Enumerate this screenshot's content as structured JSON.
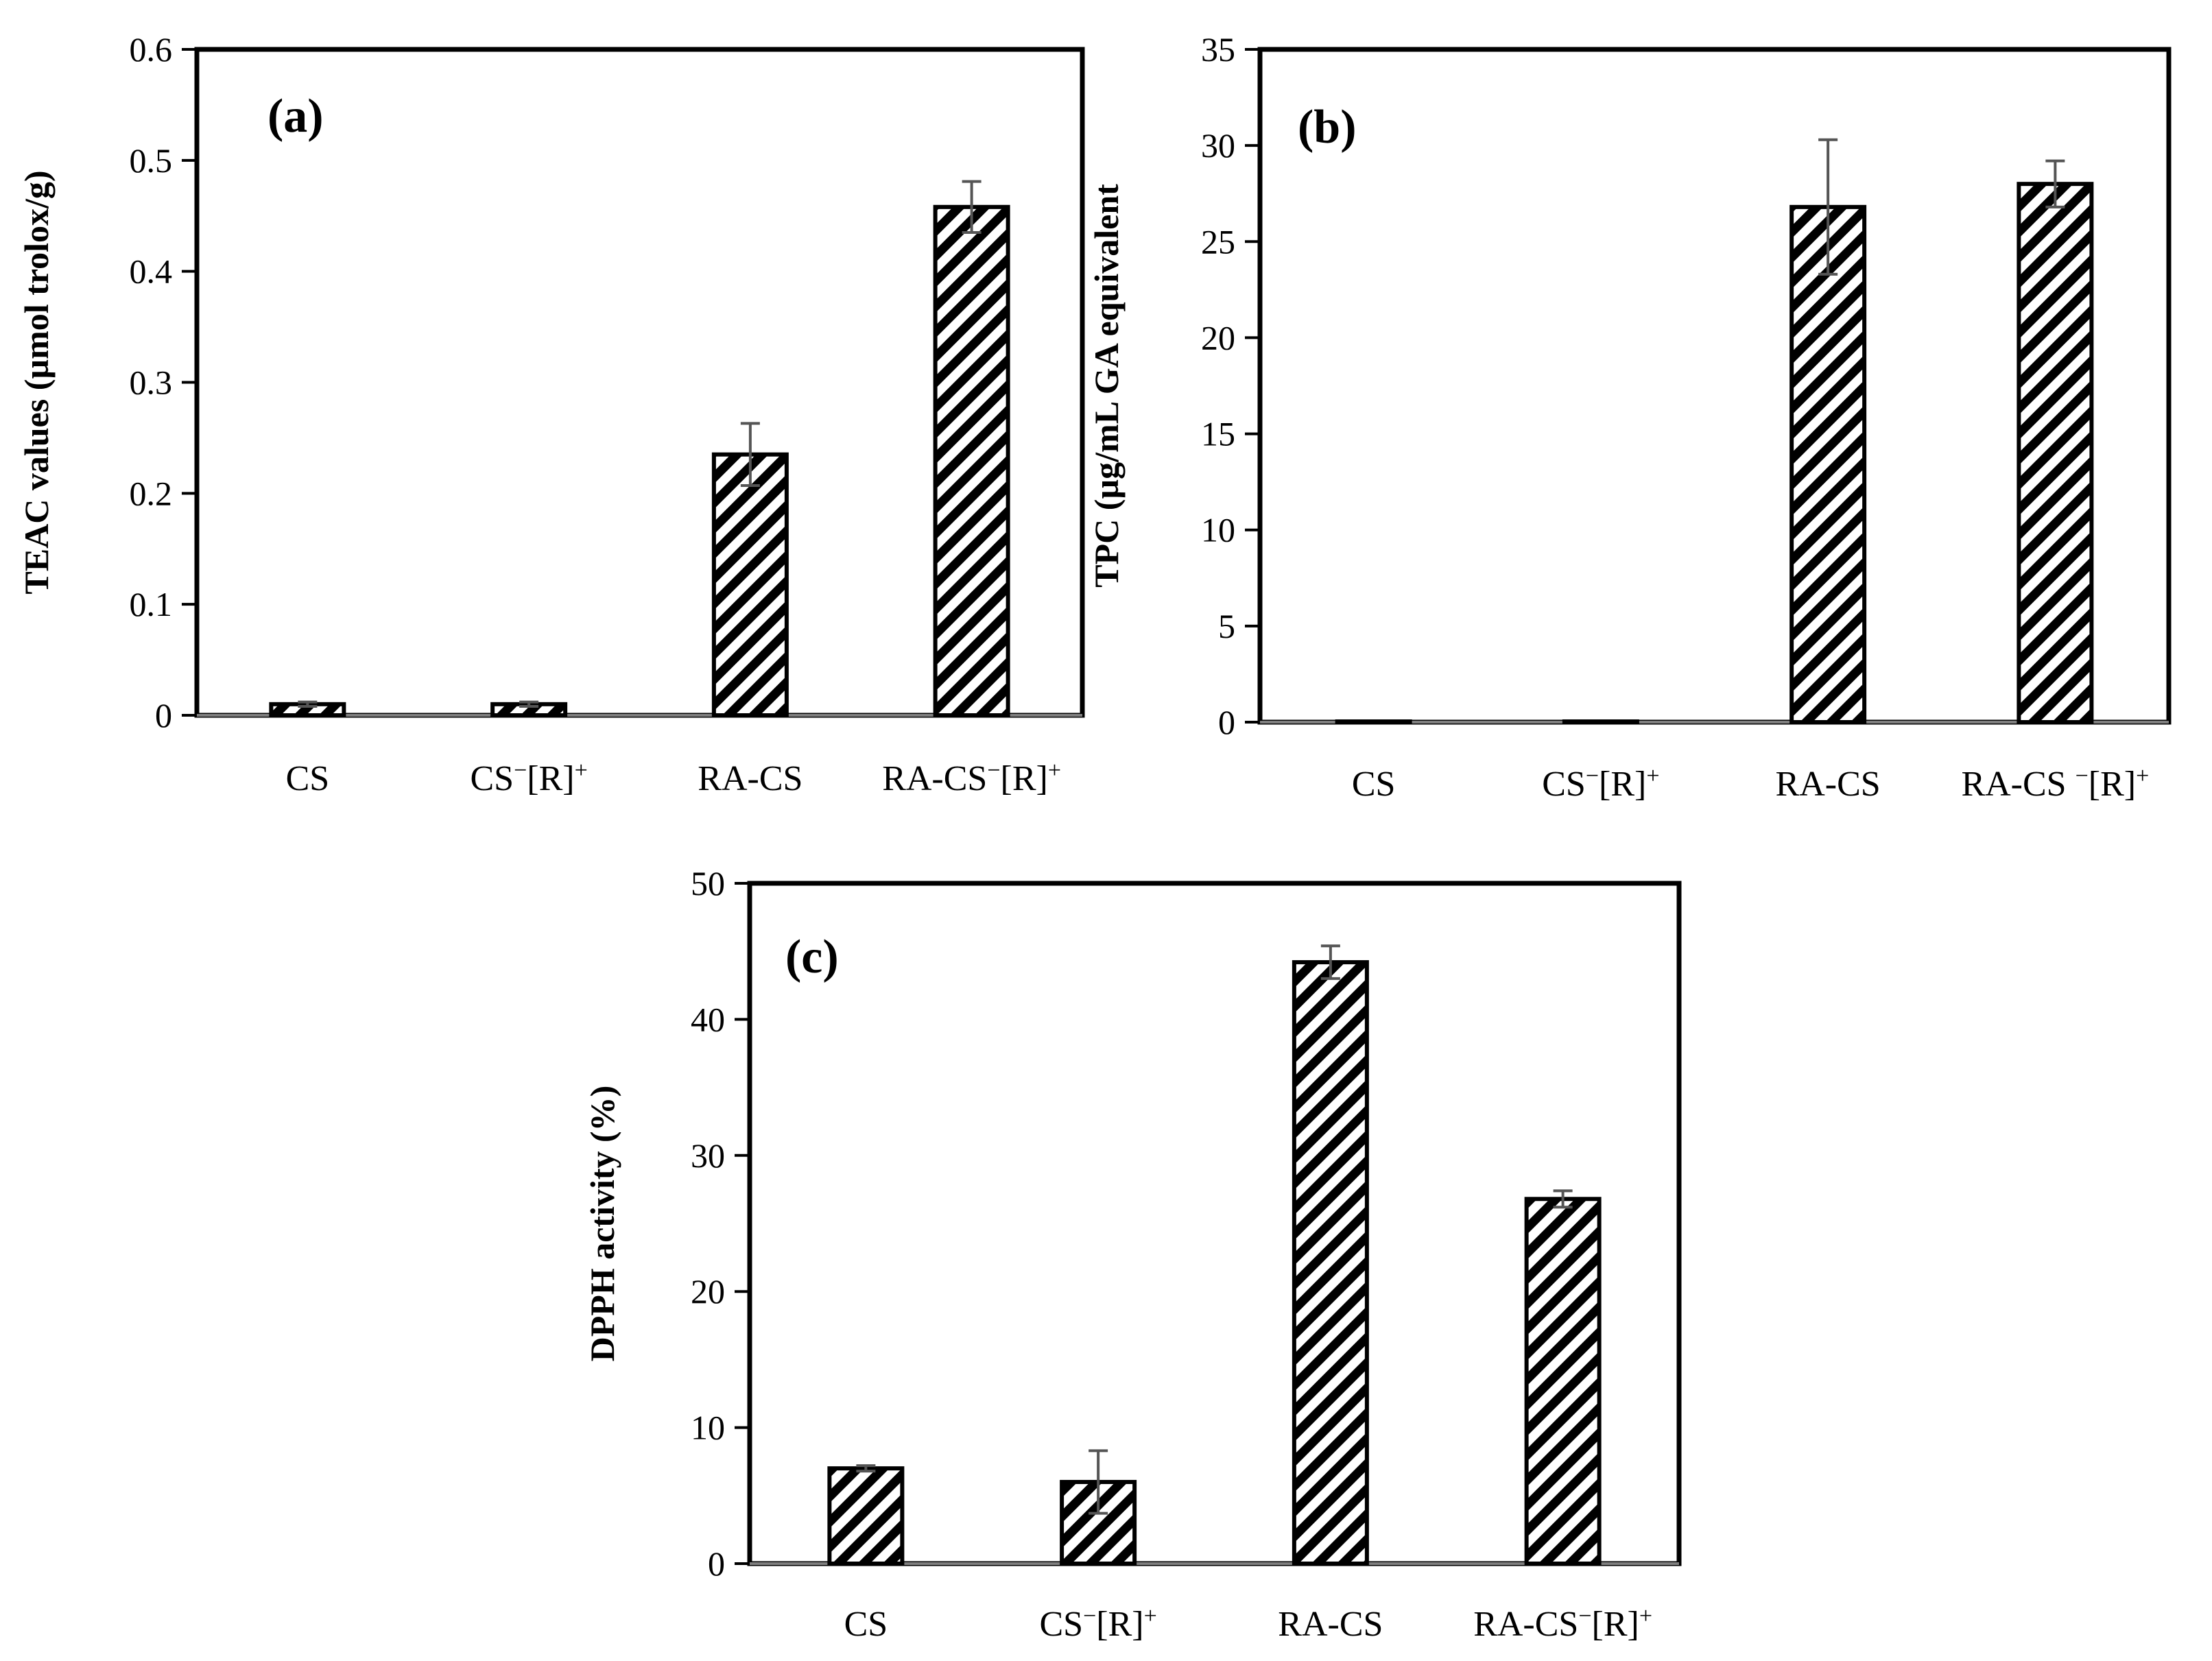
{
  "chart_data": [
    {
      "type": "bar",
      "panel_label": "(a)",
      "title": "",
      "ylabel": "TEAC values (µmol trolox/g)",
      "xlabel": "",
      "ylim": [
        0,
        0.6
      ],
      "yticks": [
        "0",
        "0.1",
        "0.2",
        "0.3",
        "0.4",
        "0.5",
        "0.6"
      ],
      "categories": [
        {
          "base": "CS",
          "sup1": "",
          "mid": "",
          "sup2": ""
        },
        {
          "base": "CS",
          "sup1": "−",
          "mid": "[R]",
          "sup2": "+"
        },
        {
          "base": "RA-CS",
          "sup1": "",
          "mid": "",
          "sup2": ""
        },
        {
          "base": "RA-CS",
          "sup1": "−",
          "mid": "[R]",
          "sup2": "+"
        }
      ],
      "values": [
        0.01,
        0.01,
        0.235,
        0.458
      ],
      "errors": [
        0.002,
        0.002,
        0.028,
        0.023
      ],
      "bar_color": "#000000",
      "hatch": "diagonal"
    },
    {
      "type": "bar",
      "panel_label": "(b)",
      "title": "",
      "ylabel": "TPC (µg/mL GA equivalent",
      "xlabel": "",
      "ylim": [
        0,
        35
      ],
      "yticks": [
        "0",
        "5",
        "10",
        "15",
        "20",
        "25",
        "30",
        "35"
      ],
      "categories": [
        {
          "base": "CS",
          "sup1": "",
          "mid": "",
          "sup2": ""
        },
        {
          "base": "CS",
          "sup1": "−",
          "mid": "[R]",
          "sup2": "+"
        },
        {
          "base": "RA-CS",
          "sup1": "",
          "mid": "",
          "sup2": ""
        },
        {
          "base": "RA-CS ",
          "sup1": "−",
          "mid": "[R]",
          "sup2": "+"
        }
      ],
      "values": [
        0,
        0,
        26.8,
        28.0
      ],
      "errors": [
        0,
        0,
        3.5,
        1.2
      ],
      "bar_color": "#000000",
      "hatch": "diagonal"
    },
    {
      "type": "bar",
      "panel_label": "(c)",
      "title": "",
      "ylabel": "DPPH activity (%)",
      "xlabel": "",
      "ylim": [
        0,
        50
      ],
      "yticks": [
        "0",
        "10",
        "20",
        "30",
        "40",
        "50"
      ],
      "categories": [
        {
          "base": "CS",
          "sup1": "",
          "mid": "",
          "sup2": ""
        },
        {
          "base": "CS",
          "sup1": "−",
          "mid": "[R]",
          "sup2": "+"
        },
        {
          "base": "RA-CS",
          "sup1": "",
          "mid": "",
          "sup2": ""
        },
        {
          "base": "RA-CS",
          "sup1": "−",
          "mid": "[R]",
          "sup2": "+"
        }
      ],
      "values": [
        7.0,
        6.0,
        44.2,
        26.8
      ],
      "errors": [
        0.2,
        2.3,
        1.2,
        0.6
      ],
      "bar_color": "#000000",
      "hatch": "diagonal"
    }
  ]
}
